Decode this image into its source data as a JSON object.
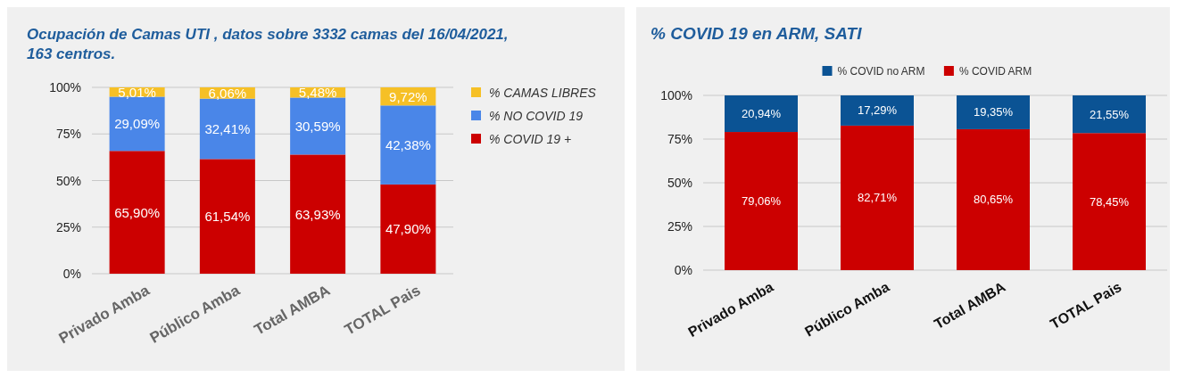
{
  "chart_data": [
    {
      "type": "bar",
      "title": "Ocupación de Camas UTI , datos sobre 3332 camas del 16/04/2021, 163 centros.",
      "categories": [
        "Privado Amba",
        "Público Amba",
        "Total AMBA",
        "TOTAL Pais"
      ],
      "stacked": true,
      "series": [
        {
          "name": "% COVID 19 +",
          "color": "#cc0000",
          "values": [
            65.9,
            61.54,
            63.93,
            47.9
          ],
          "value_labels": [
            "65,90%",
            "61,54%",
            "63,93%",
            "47,90%"
          ]
        },
        {
          "name": "% NO COVID 19",
          "color": "#4a86e8",
          "values": [
            29.09,
            32.41,
            30.59,
            42.38
          ],
          "value_labels": [
            "29,09%",
            "32,41%",
            "30,59%",
            "42,38%"
          ]
        },
        {
          "name": "% CAMAS LIBRES",
          "color": "#f6c026",
          "values": [
            5.01,
            6.06,
            5.48,
            9.72
          ],
          "value_labels": [
            "5,01%",
            "6,06%",
            "5,48%",
            "9,72%"
          ]
        }
      ],
      "ylim": [
        0,
        100
      ],
      "yticks": [
        {
          "value": 0,
          "label": "0%"
        },
        {
          "value": 25,
          "label": "25%"
        },
        {
          "value": 50,
          "label": "50%"
        },
        {
          "value": 75,
          "label": "75%"
        },
        {
          "value": 100,
          "label": "100%"
        }
      ],
      "grid": "y",
      "legend": "right"
    },
    {
      "type": "bar",
      "title": "% COVID 19 en ARM, SATI",
      "categories": [
        "Privado Amba",
        "Público Amba",
        "Total AMBA",
        "TOTAL Pais"
      ],
      "stacked": true,
      "series": [
        {
          "name": "% COVID ARM",
          "color": "#cc0000",
          "values": [
            79.06,
            82.71,
            80.65,
            78.45
          ],
          "value_labels": [
            "79,06%",
            "82,71%",
            "80,65%",
            "78,45%"
          ]
        },
        {
          "name": "% COVID no ARM",
          "color": "#0b5394",
          "values": [
            20.94,
            17.29,
            19.35,
            21.55
          ],
          "value_labels": [
            "20,94%",
            "17,29%",
            "19,35%",
            "21,55%"
          ]
        }
      ],
      "ylim": [
        0,
        100
      ],
      "yticks": [
        {
          "value": 0,
          "label": "0%"
        },
        {
          "value": 25,
          "label": "25%"
        },
        {
          "value": 50,
          "label": "50%"
        },
        {
          "value": 75,
          "label": "75%"
        },
        {
          "value": 100,
          "label": "100%"
        }
      ],
      "grid": "y",
      "legend": "top"
    }
  ]
}
